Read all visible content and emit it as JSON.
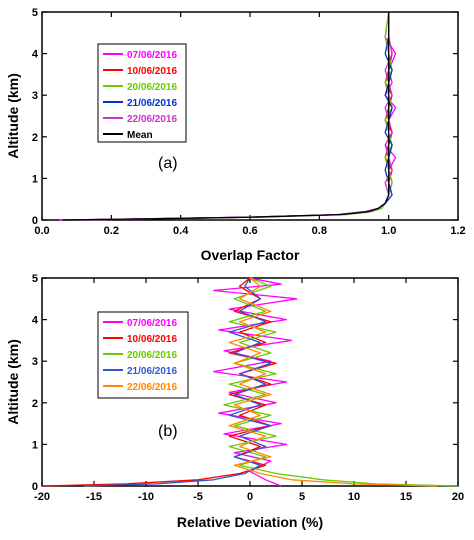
{
  "chart_data": [
    {
      "type": "line",
      "panel_label": "(a)",
      "xlabel": "Overlap Factor",
      "ylabel": "Altitude (km)",
      "xlim": [
        0.0,
        1.2
      ],
      "ylim": [
        0,
        5
      ],
      "xticks": [
        "0.0",
        "0.2",
        "0.4",
        "0.6",
        "0.8",
        "1.0",
        "1.2"
      ],
      "yticks": [
        "0",
        "1",
        "2",
        "3",
        "4",
        "5"
      ],
      "legend_position": "upper-left",
      "series": [
        {
          "name": "07/06/2016",
          "color": "#ff00ff",
          "x": [
            0.05,
            0.3,
            0.6,
            0.85,
            0.93,
            0.97,
            0.99,
            1.0,
            1.01,
            1.0,
            1.02,
            0.99,
            1.01,
            1.0,
            1.02,
            0.99,
            1.01,
            1.0,
            1.02,
            0.99,
            1.0
          ],
          "y": [
            0.0,
            0.03,
            0.07,
            0.13,
            0.2,
            0.28,
            0.4,
            0.6,
            0.9,
            1.2,
            1.5,
            1.8,
            2.1,
            2.4,
            2.7,
            3.0,
            3.3,
            3.6,
            4.0,
            4.4,
            5.0
          ]
        },
        {
          "name": "10/06/2016",
          "color": "#ff0000",
          "x": [
            0.08,
            0.32,
            0.62,
            0.86,
            0.94,
            0.97,
            0.99,
            1.0,
            1.0,
            1.01,
            0.99,
            1.0,
            1.01,
            0.99,
            1.0,
            1.01,
            0.99,
            1.0,
            1.01,
            1.0,
            1.0
          ],
          "y": [
            0.0,
            0.03,
            0.07,
            0.13,
            0.2,
            0.28,
            0.4,
            0.6,
            0.9,
            1.2,
            1.5,
            1.8,
            2.1,
            2.4,
            2.7,
            3.0,
            3.3,
            3.6,
            4.0,
            4.4,
            5.0
          ]
        },
        {
          "name": "20/06/2016",
          "color": "#66cc00",
          "x": [
            0.07,
            0.35,
            0.64,
            0.88,
            0.95,
            0.98,
            0.99,
            1.0,
            1.01,
            1.0,
            0.99,
            1.01,
            1.0,
            0.99,
            1.01,
            1.0,
            0.99,
            1.01,
            1.0,
            0.99,
            1.0
          ],
          "y": [
            0.0,
            0.03,
            0.07,
            0.13,
            0.2,
            0.28,
            0.4,
            0.6,
            0.9,
            1.2,
            1.5,
            1.8,
            2.1,
            2.4,
            2.7,
            3.0,
            3.3,
            3.6,
            4.0,
            4.4,
            5.0
          ]
        },
        {
          "name": "21/06/2016",
          "color": "#0033cc",
          "x": [
            0.06,
            0.31,
            0.61,
            0.86,
            0.94,
            0.97,
            0.99,
            1.01,
            1.0,
            0.99,
            1.0,
            1.01,
            0.99,
            1.0,
            1.01,
            0.99,
            1.0,
            1.01,
            0.99,
            1.0,
            1.0
          ],
          "y": [
            0.0,
            0.03,
            0.07,
            0.13,
            0.2,
            0.28,
            0.4,
            0.6,
            0.9,
            1.2,
            1.5,
            1.8,
            2.1,
            2.4,
            2.7,
            3.0,
            3.3,
            3.6,
            4.0,
            4.4,
            5.0
          ]
        },
        {
          "name": "22/06/2016",
          "color": "#cc33cc",
          "x": [
            0.06,
            0.3,
            0.6,
            0.85,
            0.93,
            0.97,
            0.99,
            1.0,
            0.99,
            1.01,
            1.0,
            0.99,
            1.01,
            1.0,
            0.99,
            1.01,
            1.0,
            0.99,
            1.01,
            1.0,
            1.0
          ],
          "y": [
            0.0,
            0.03,
            0.07,
            0.13,
            0.2,
            0.28,
            0.4,
            0.6,
            0.9,
            1.2,
            1.5,
            1.8,
            2.1,
            2.4,
            2.7,
            3.0,
            3.3,
            3.6,
            4.0,
            4.4,
            5.0
          ]
        },
        {
          "name": "Mean",
          "color": "#000000",
          "x": [
            0.06,
            0.32,
            0.61,
            0.86,
            0.94,
            0.97,
            0.99,
            1.0,
            1.0,
            1.0,
            1.0,
            1.0,
            1.0,
            1.0,
            1.0,
            1.0,
            1.0,
            1.0,
            1.0,
            1.0,
            1.0
          ],
          "y": [
            0.0,
            0.03,
            0.07,
            0.13,
            0.2,
            0.28,
            0.4,
            0.6,
            0.9,
            1.2,
            1.5,
            1.8,
            2.1,
            2.4,
            2.7,
            3.0,
            3.3,
            3.6,
            4.0,
            4.4,
            5.0
          ]
        }
      ]
    },
    {
      "type": "line",
      "panel_label": "(b)",
      "xlabel": "Relative Deviation (%)",
      "ylabel": "Altitude (km)",
      "xlim": [
        -20,
        20
      ],
      "ylim": [
        0,
        5
      ],
      "xticks": [
        "-20",
        "-15",
        "-10",
        "-5",
        "0",
        "5",
        "10",
        "15",
        "20"
      ],
      "yticks": [
        "0",
        "1",
        "2",
        "3",
        "4",
        "5"
      ],
      "legend_position": "upper-left",
      "series": [
        {
          "name": "07/06/2016",
          "color": "#ff00ff",
          "x": [
            3.0,
            1.5,
            0.0,
            2.0,
            -1.5,
            3.5,
            -2.5,
            3.0,
            -3.0,
            2.5,
            -2.0,
            3.5,
            -3.5,
            2.0,
            -2.5,
            4.0,
            -3.0,
            3.5,
            -2.0,
            4.5,
            -3.5,
            3.0,
            0.0
          ],
          "y": [
            0.0,
            0.15,
            0.35,
            0.6,
            0.8,
            1.0,
            1.25,
            1.5,
            1.75,
            2.0,
            2.25,
            2.5,
            2.75,
            3.0,
            3.25,
            3.5,
            3.75,
            4.0,
            4.25,
            4.5,
            4.7,
            4.85,
            5.0
          ]
        },
        {
          "name": "10/06/2016",
          "color": "#ff0000",
          "x": [
            -20.0,
            -12.0,
            -5.0,
            -1.0,
            1.5,
            -1.5,
            1.0,
            -2.0,
            2.0,
            -1.0,
            1.5,
            -2.0,
            2.0,
            -1.0,
            2.5,
            -2.0,
            1.5,
            -1.0,
            2.0,
            -1.5,
            1.0,
            -1.0,
            0.0
          ],
          "y": [
            0.0,
            0.05,
            0.15,
            0.3,
            0.5,
            0.7,
            0.95,
            1.2,
            1.45,
            1.7,
            1.95,
            2.2,
            2.45,
            2.7,
            2.95,
            3.2,
            3.45,
            3.7,
            3.95,
            4.2,
            4.5,
            4.8,
            5.0
          ]
        },
        {
          "name": "20/06/2016",
          "color": "#66cc00",
          "x": [
            20.0,
            12.0,
            7.0,
            2.5,
            -1.0,
            1.5,
            -2.0,
            2.5,
            -1.5,
            2.0,
            -2.5,
            1.5,
            -2.0,
            2.5,
            -1.5,
            2.0,
            -1.0,
            2.5,
            -2.0,
            1.5,
            -1.5,
            2.0,
            0.0
          ],
          "y": [
            0.0,
            0.05,
            0.15,
            0.3,
            0.5,
            0.7,
            0.95,
            1.2,
            1.45,
            1.7,
            1.95,
            2.2,
            2.45,
            2.7,
            2.95,
            3.2,
            3.45,
            3.7,
            3.95,
            4.2,
            4.5,
            4.8,
            5.0
          ]
        },
        {
          "name": "21/06/2016",
          "color": "#3355cc",
          "x": [
            -16.0,
            -9.0,
            -3.5,
            -0.5,
            1.0,
            -1.5,
            1.5,
            -1.0,
            2.0,
            -2.0,
            1.0,
            -1.5,
            1.5,
            -1.0,
            2.0,
            -1.5,
            1.0,
            -2.0,
            1.5,
            -1.0,
            1.0,
            -0.5,
            0.0
          ],
          "y": [
            0.0,
            0.05,
            0.15,
            0.3,
            0.5,
            0.7,
            0.95,
            1.2,
            1.45,
            1.7,
            1.95,
            2.2,
            2.45,
            2.7,
            2.95,
            3.2,
            3.45,
            3.7,
            3.95,
            4.2,
            4.5,
            4.8,
            5.0
          ]
        },
        {
          "name": "22/06/2016",
          "color": "#ff8800",
          "x": [
            18.0,
            10.0,
            4.0,
            1.0,
            -1.5,
            2.0,
            -1.0,
            1.5,
            -2.0,
            1.0,
            -1.5,
            2.0,
            -1.0,
            1.5,
            -1.5,
            1.0,
            -2.0,
            1.5,
            -1.0,
            2.0,
            -1.0,
            1.0,
            0.0
          ],
          "y": [
            0.0,
            0.05,
            0.15,
            0.3,
            0.5,
            0.7,
            0.95,
            1.2,
            1.45,
            1.7,
            1.95,
            2.2,
            2.45,
            2.7,
            2.95,
            3.2,
            3.45,
            3.7,
            3.95,
            4.2,
            4.5,
            4.8,
            5.0
          ]
        }
      ]
    }
  ]
}
